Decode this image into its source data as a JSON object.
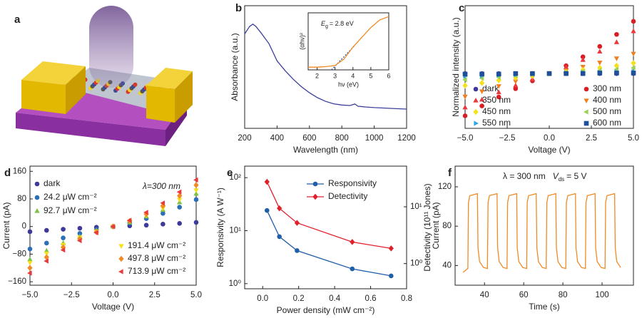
{
  "illustration": {
    "panel_label": "a"
  },
  "chart_data": [
    {
      "panel_label": "b",
      "type": "line",
      "xlabel": "Wavelength (nm)",
      "ylabel": "Absorbance (a.u.)",
      "x": [
        200,
        230,
        250,
        270,
        300,
        350,
        400,
        450,
        500,
        550,
        600,
        650,
        700,
        750,
        800,
        850,
        880,
        900,
        950,
        1000,
        1100,
        1200
      ],
      "values": [
        0.77,
        0.83,
        0.85,
        0.83,
        0.78,
        0.69,
        0.55,
        0.47,
        0.4,
        0.34,
        0.29,
        0.25,
        0.22,
        0.2,
        0.19,
        0.186,
        0.198,
        0.18,
        0.174,
        0.169,
        0.163,
        0.157
      ],
      "color": "#3b3f99",
      "xlim": [
        200,
        1200
      ],
      "xticks": [
        200,
        400,
        600,
        800,
        1000,
        1200
      ],
      "ylim": [
        0,
        1
      ],
      "inset": {
        "type": "line",
        "xlabel": "hν (eV)",
        "ylabel": "(αhν)²",
        "x": [
          1.5,
          2,
          2.5,
          3,
          3.5,
          4,
          4.5,
          5,
          5.5,
          6
        ],
        "values": [
          0.05,
          0.05,
          0.06,
          0.08,
          0.2,
          0.42,
          0.6,
          0.78,
          0.92,
          0.98
        ],
        "color": "#f08a24",
        "xlim": [
          1.5,
          6
        ],
        "xticks": [
          2,
          3,
          4,
          5,
          6
        ],
        "ylim": [
          0,
          1.05
        ],
        "fit": {
          "x": [
            2.8,
            4.1
          ],
          "values": [
            0,
            0.45
          ],
          "color": "#2a4f9b"
        },
        "annotation": {
          "symbol": "E",
          "subscript": "g",
          "text": "= 2.8 eV"
        }
      }
    },
    {
      "panel_label": "c",
      "type": "scatter",
      "xlabel": "Voltage (V)",
      "ylabel": "Normalized intensity (a.u.)",
      "x": [
        -5,
        -4,
        -3,
        -2,
        -1,
        0,
        1,
        2,
        3,
        4,
        5
      ],
      "xlim": [
        -5,
        5
      ],
      "xticks": [
        {
          "value": -5,
          "label": "−5.0"
        },
        {
          "value": -2.5,
          "label": "−2.5"
        },
        {
          "value": 0,
          "label": "0.0"
        },
        {
          "value": 2.5,
          "label": "2.5"
        },
        {
          "value": 5,
          "label": "5.0"
        }
      ],
      "ylim": [
        -1.05,
        1.3
      ],
      "series": [
        {
          "name": "dark",
          "color": "#3d3a99",
          "marker": "circle",
          "values": [
            0,
            0,
            0,
            0,
            0,
            0,
            0,
            0,
            0,
            0,
            0
          ]
        },
        {
          "name": "300 nm",
          "color": "#d81f26",
          "marker": "circle",
          "values": [
            -0.81,
            -0.62,
            -0.45,
            -0.29,
            -0.14,
            0,
            0.15,
            0.32,
            0.52,
            0.75,
            1.0
          ]
        },
        {
          "name": "350 nm",
          "color": "#e8393d",
          "marker": "triangle-up",
          "values": [
            -0.65,
            -0.5,
            -0.36,
            -0.23,
            -0.11,
            0,
            0.12,
            0.26,
            0.42,
            0.6,
            0.81
          ]
        },
        {
          "name": "400 nm",
          "color": "#f07f22",
          "marker": "triangle-down",
          "values": [
            -0.44,
            -0.34,
            -0.24,
            -0.15,
            -0.07,
            0,
            0.06,
            0.13,
            0.21,
            0.29,
            0.38
          ]
        },
        {
          "name": "450 nm",
          "color": "#f4e11c",
          "marker": "diamond",
          "values": [
            -0.23,
            -0.18,
            -0.13,
            -0.08,
            -0.04,
            0,
            0.03,
            0.07,
            0.11,
            0.15,
            0.2
          ]
        },
        {
          "name": "500 nm",
          "color": "#9cd055",
          "marker": "triangle-left",
          "values": [
            -0.12,
            -0.09,
            -0.07,
            -0.04,
            -0.02,
            0,
            0.02,
            0.04,
            0.06,
            0.08,
            0.11
          ]
        },
        {
          "name": "550 nm",
          "color": "#30a6de",
          "marker": "triangle-right",
          "values": [
            -0.05,
            -0.04,
            -0.03,
            -0.02,
            -0.01,
            0,
            0.01,
            0.02,
            0.02,
            0.03,
            0.04
          ]
        },
        {
          "name": "600 nm",
          "color": "#1f4e9b",
          "marker": "square",
          "values": [
            -0.01,
            -0.01,
            -0.01,
            0,
            0,
            0,
            0,
            0,
            0.01,
            0.01,
            0.01
          ]
        }
      ]
    },
    {
      "panel_label": "d",
      "type": "scatter",
      "xlabel": "Voltage (V)",
      "ylabel": "Current (pA)",
      "annotation": "λ=300 nm",
      "x": [
        -5,
        -4,
        -3,
        -2,
        -1,
        0,
        1,
        2,
        3,
        4,
        5
      ],
      "xlim": [
        -5,
        5
      ],
      "xticks": [
        {
          "value": -5,
          "label": "−5.0"
        },
        {
          "value": -2.5,
          "label": "−2.5"
        },
        {
          "value": 0,
          "label": "0.0"
        },
        {
          "value": 2.5,
          "label": "2.5"
        },
        {
          "value": 5,
          "label": "5.0"
        }
      ],
      "ylim": [
        -170,
        175
      ],
      "yticks": [
        160,
        80,
        0,
        {
          "value": -80,
          "label": "−80"
        },
        {
          "value": -160,
          "label": "−160"
        }
      ],
      "series": [
        {
          "name": "dark",
          "color": "#3d3a99",
          "marker": "circle",
          "values": [
            -15,
            -11,
            -8,
            -5,
            -2,
            0,
            2,
            4,
            7,
            9,
            12
          ]
        },
        {
          "name": "24.2 μW cm⁻²",
          "color": "#2a6fb7",
          "marker": "circle",
          "values": [
            -65,
            -48,
            -33,
            -20,
            -9,
            0,
            10,
            23,
            38,
            56,
            78
          ]
        },
        {
          "name": "92.7 μW cm⁻²",
          "color": "#7dc24a",
          "marker": "triangle-up",
          "values": [
            -95,
            -70,
            -48,
            -29,
            -12,
            0,
            12,
            29,
            48,
            70,
            95
          ]
        },
        {
          "name": "191.4 μW cm⁻²",
          "color": "#f6e01b",
          "marker": "triangle-down",
          "values": [
            -105,
            -78,
            -53,
            -32,
            -14,
            0,
            14,
            32,
            53,
            78,
            105
          ]
        },
        {
          "name": "497.8 μW cm⁻²",
          "color": "#f08a24",
          "marker": "diamond",
          "values": [
            -120,
            -89,
            -60,
            -36,
            -16,
            0,
            16,
            36,
            60,
            89,
            120
          ]
        },
        {
          "name": "713.9 μW cm⁻²",
          "color": "#e8393d",
          "marker": "triangle-left",
          "values": [
            -135,
            -100,
            -68,
            -41,
            -18,
            0,
            18,
            41,
            68,
            100,
            135
          ]
        }
      ]
    },
    {
      "panel_label": "e",
      "type": "line",
      "xlabel": "Power density (mW cm⁻²)",
      "ylabel": "Responsivity (A W⁻¹)",
      "y2label": "Detectivity (10¹¹ Jones)",
      "x": [
        0.024,
        0.093,
        0.191,
        0.498,
        0.714
      ],
      "xlim": [
        -0.1,
        0.8
      ],
      "xticks": [
        {
          "value": 0,
          "label": "0.0"
        },
        0.2,
        0.4,
        0.6,
        0.8
      ],
      "ylog": true,
      "ylim": [
        0.8,
        165
      ],
      "yticks": [
        {
          "value": 1,
          "label": "10⁰"
        },
        {
          "value": 10,
          "label": "10¹"
        },
        {
          "value": 100,
          "label": "10²"
        }
      ],
      "y2log": true,
      "y2lim": [
        0.36,
        52
      ],
      "y2ticks": [
        {
          "value": 1,
          "label": "10⁰"
        },
        {
          "value": 10,
          "label": "10¹"
        }
      ],
      "series": [
        {
          "name": "Responsivity",
          "color": "#1f5fa8",
          "marker": "circle",
          "values": [
            24,
            7.7,
            4.2,
            1.9,
            1.4
          ]
        },
        {
          "name": "Detectivity",
          "color": "#e0202a",
          "marker": "diamond",
          "axis": "y2",
          "values": [
            27.5,
            9.4,
            5.2,
            2.4,
            1.85
          ]
        }
      ]
    },
    {
      "panel_label": "f",
      "type": "line",
      "xlabel": "Time (s)",
      "ylabel": "Current (pA)",
      "annotation": {
        "text": "λ = 300 nm",
        "symbol": "V",
        "subscript": "ds",
        "text2": "= 5 V"
      },
      "x": [
        29,
        31.5,
        31.8,
        32.5,
        36.4,
        36.7,
        37.5,
        39.5,
        41.5,
        41.8,
        42.5,
        46.4,
        46.7,
        47.5,
        49.5,
        51.5,
        51.8,
        52.5,
        56.4,
        56.7,
        57.5,
        59.5,
        61.5,
        61.8,
        62.5,
        66.4,
        66.7,
        67.5,
        69.5,
        71.5,
        71.8,
        72.5,
        76.4,
        76.7,
        77.5,
        79.5,
        81.5,
        81.8,
        82.5,
        86.4,
        86.7,
        87.5,
        89.5,
        91.5,
        91.8,
        92.5,
        96.4,
        96.7,
        97.5,
        99.5,
        101.5,
        101.8,
        102.5,
        106.4,
        106.7,
        107.5,
        109.5
      ],
      "values": [
        33,
        37,
        104,
        111,
        113,
        58,
        44,
        38,
        37,
        104,
        111,
        113,
        58,
        44,
        38,
        37,
        104,
        111,
        113,
        58,
        44,
        38,
        37,
        104,
        111,
        113,
        58,
        44,
        38,
        37,
        104,
        111,
        113,
        58,
        44,
        38,
        37,
        104,
        111,
        113,
        58,
        44,
        38,
        37,
        104,
        111,
        113,
        58,
        44,
        38,
        37,
        104,
        111,
        113,
        58,
        44,
        38
      ],
      "color": "#f08a24",
      "xlim": [
        25,
        116
      ],
      "xticks": [
        40,
        60,
        80,
        100
      ],
      "ylim": [
        20,
        141
      ],
      "yticks": [
        40,
        80,
        120
      ]
    }
  ]
}
